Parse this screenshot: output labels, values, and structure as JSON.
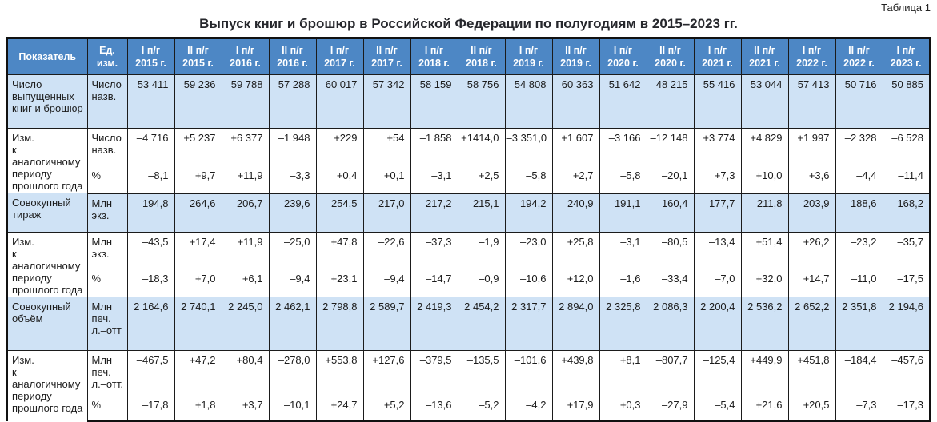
{
  "page_label": "Таблица 1",
  "title": "Выпуск книг и брошюр в Российской Федерации по полугодиям в 2015–2023 гг.",
  "colors": {
    "header_bg": "#4d87c5",
    "band_bg": "#cfe2f5",
    "border": "#1b1b1b",
    "title_color": "#26272c"
  },
  "table": {
    "header": {
      "indicator": "Показатель",
      "unit": "Ед.\nизм.",
      "periods": [
        "I п/г\n2015 г.",
        "II п/г\n2015 г.",
        "I п/г\n2016 г.",
        "II п/г\n2016 г.",
        "I п/г\n2017 г.",
        "II п/г\n2017 г.",
        "I п/г\n2018 г.",
        "II п/г\n2018 г.",
        "I п/г\n2019 г.",
        "II п/г\n2019 г.",
        "I п/г\n2020 г.",
        "II п/г\n2020 г.",
        "I п/г\n2021 г.",
        "II п/г\n2021 г.",
        "I п/г\n2022 г.",
        "II п/г\n2022 г.",
        "I п/г\n2023 г."
      ]
    },
    "groups": [
      {
        "indicator": "Число\nвыпущенных\nкниг и брошюр",
        "band": true,
        "subrows": [
          {
            "unit": "Число\nназв.",
            "values": [
              "53 411",
              "59 236",
              "59 788",
              "57 288",
              "60 017",
              "57 342",
              "58 159",
              "58 756",
              "54 808",
              "60 363",
              "51 642",
              "48 215",
              "55 416",
              "53 044",
              "57 413",
              "50 716",
              "50 885"
            ]
          }
        ]
      },
      {
        "indicator": "Изм.\nк аналогичному\nпериоду\nпрошлого года",
        "band": false,
        "subrows": [
          {
            "unit": "Число\nназв.",
            "values": [
              "–4 716",
              "+5 237",
              "+6 377",
              "–1 948",
              "+229",
              "+54",
              "–1 858",
              "+1414,0",
              "–3 351,0",
              "+1 607",
              "–3 166",
              "–12 148",
              "+3 774",
              "+4 829",
              "+1 997",
              "–2 328",
              "–6 528"
            ]
          },
          {
            "unit": "%",
            "values": [
              "–8,1",
              "+9,7",
              "+11,9",
              "–3,3",
              "+0,4",
              "+0,1",
              "–3,1",
              "+2,5",
              "–5,8",
              "+2,7",
              "–5,8",
              "–20,1",
              "+7,3",
              "+10,0",
              "+3,6",
              "–4,4",
              "–11,4"
            ]
          }
        ]
      },
      {
        "indicator": "Совокупный\nтираж",
        "band": true,
        "subrows": [
          {
            "unit": "Млн\nэкз.",
            "values": [
              "194,8",
              "264,6",
              "206,7",
              "239,6",
              "254,5",
              "217,0",
              "217,2",
              "215,1",
              "194,2",
              "240,9",
              "191,1",
              "160,4",
              "177,7",
              "211,8",
              "203,9",
              "188,6",
              "168,2"
            ]
          }
        ]
      },
      {
        "indicator": "Изм.\nк аналогичному\nпериоду\nпрошлого года",
        "band": false,
        "subrows": [
          {
            "unit": "Млн\nэкз.",
            "values": [
              "–43,5",
              "+17,4",
              "+11,9",
              "–25,0",
              "+47,8",
              "–22,6",
              "–37,3",
              "–1,9",
              "–23,0",
              "+25,8",
              "–3,1",
              "–80,5",
              "–13,4",
              "+51,4",
              "+26,2",
              "–23,2",
              "–35,7"
            ]
          },
          {
            "unit": "%",
            "values": [
              "–18,3",
              "+7,0",
              "+6,1",
              "–9,4",
              "+23,1",
              "–9,4",
              "–14,7",
              "–0,9",
              "–10,6",
              "+12,0",
              "–1,6",
              "–33,4",
              "–7,0",
              "+32,0",
              "+14,7",
              "–11,0",
              "–17,5"
            ]
          }
        ]
      },
      {
        "indicator": "Совокупный\nобъём",
        "band": true,
        "subrows": [
          {
            "unit": "Млн\nпеч.\nл.–отт",
            "values": [
              "2 164,6",
              "2 740,1",
              "2 245,0",
              "2 462,1",
              "2 798,8",
              "2 589,7",
              "2 419,3",
              "2 454,2",
              "2 317,7",
              "2 894,0",
              "2 325,8",
              "2 086,3",
              "2 200,4",
              "2 536,2",
              "2 652,2",
              "2 351,8",
              "2 194,6"
            ]
          }
        ]
      },
      {
        "indicator": "Изм.\nк аналогичному\nпериоду\nпрошлого года",
        "band": false,
        "subrows": [
          {
            "unit": "Млн\nпеч.\nл.–отт.",
            "values": [
              "–467,5",
              "+47,2",
              "+80,4",
              "–278,0",
              "+553,8",
              "+127,6",
              "–379,5",
              "–135,5",
              "–101,6",
              "+439,8",
              "+8,1",
              "–807,7",
              "–125,4",
              "+449,9",
              "+451,8",
              "–184,4",
              "–457,6"
            ]
          },
          {
            "unit": "%",
            "values": [
              "–17,8",
              "+1,8",
              "+3,7",
              "–10,1",
              "+24,7",
              "+5,2",
              "–13,6",
              "–5,2",
              "–4,2",
              "+17,9",
              "+0,3",
              "–27,9",
              "–5,4",
              "+21,6",
              "+20,5",
              "–7,3",
              "–17,3"
            ]
          }
        ]
      }
    ]
  }
}
